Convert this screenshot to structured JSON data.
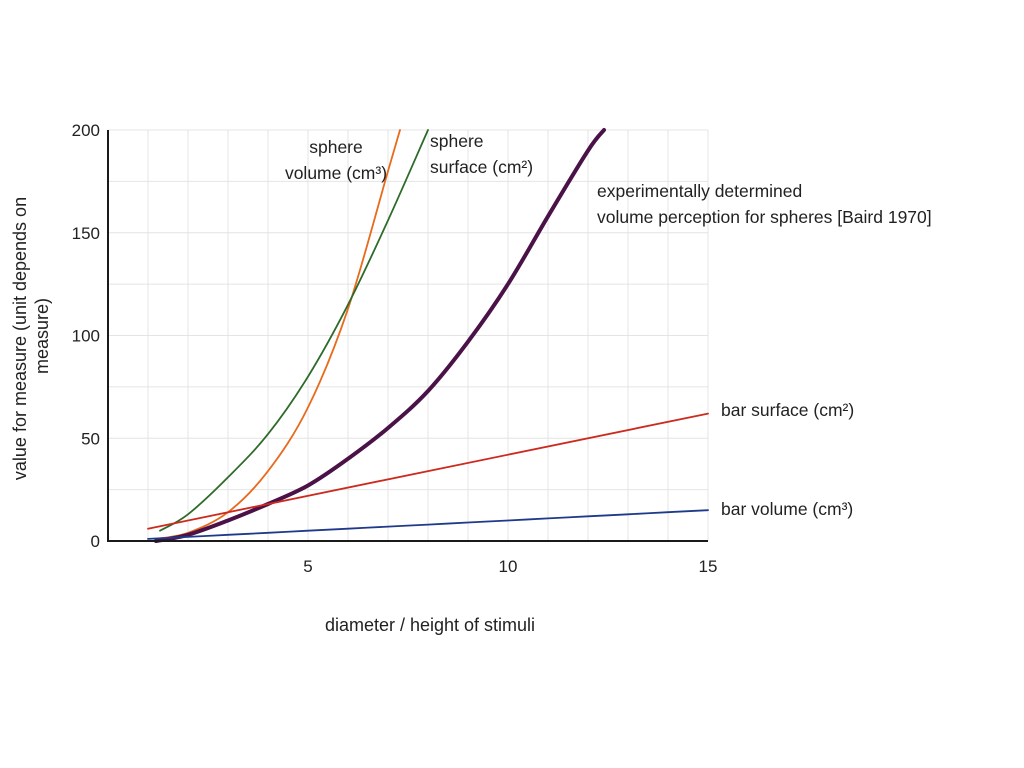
{
  "chart_data": {
    "type": "line",
    "xlabel": "diameter / height of stimuli",
    "ylabel_lines": [
      "value for measure (unit depends on",
      "measure)"
    ],
    "xlim": [
      0,
      15
    ],
    "ylim": [
      0,
      200
    ],
    "x_ticks": [
      5,
      10,
      15
    ],
    "y_ticks": [
      0,
      50,
      100,
      150,
      200
    ],
    "x_grid": [
      1,
      2,
      3,
      4,
      5,
      6,
      7,
      8,
      9,
      10,
      11,
      12,
      13,
      14,
      15
    ],
    "y_grid": [
      25,
      50,
      75,
      100,
      125,
      150,
      175,
      200
    ],
    "grid": true,
    "series": [
      {
        "name_lines": [
          "sphere",
          "volume (cm³)"
        ],
        "color": "#e86a1c",
        "x": [
          1.2,
          2,
          3,
          4,
          5,
          6,
          7,
          7.3
        ],
        "y": [
          1,
          4,
          14,
          34,
          65,
          113,
          180,
          200
        ]
      },
      {
        "name_lines": [
          "sphere",
          "surface (cm²)"
        ],
        "color": "#2e6b2a",
        "x": [
          1.3,
          2,
          3,
          4,
          5,
          6,
          7,
          8
        ],
        "y": [
          5,
          13,
          31,
          52,
          80,
          115,
          156,
          200
        ]
      },
      {
        "name_lines": [
          "experimentally determined",
          "volume perception for spheres [Baird 1970]"
        ],
        "color": "#4b1248",
        "x": [
          1.2,
          2,
          3,
          4,
          5,
          6,
          7,
          8,
          9,
          10,
          11,
          12,
          12.4
        ],
        "y": [
          0,
          3,
          10,
          18,
          27,
          40,
          55,
          73,
          97,
          125,
          158,
          190,
          200
        ]
      },
      {
        "name_lines": [
          "bar surface (cm²)"
        ],
        "color": "#cc2a1e",
        "x": [
          1,
          15
        ],
        "y": [
          6,
          62
        ]
      },
      {
        "name_lines": [
          "bar volume (cm³)"
        ],
        "color": "#1f3a8a",
        "x": [
          1,
          2,
          3,
          4,
          5,
          6,
          7,
          8,
          9,
          10,
          11,
          12,
          13,
          14,
          15
        ],
        "y": [
          1,
          2,
          3,
          4,
          5,
          6,
          7,
          8,
          9,
          10,
          11,
          12,
          13,
          14,
          15
        ]
      }
    ]
  }
}
